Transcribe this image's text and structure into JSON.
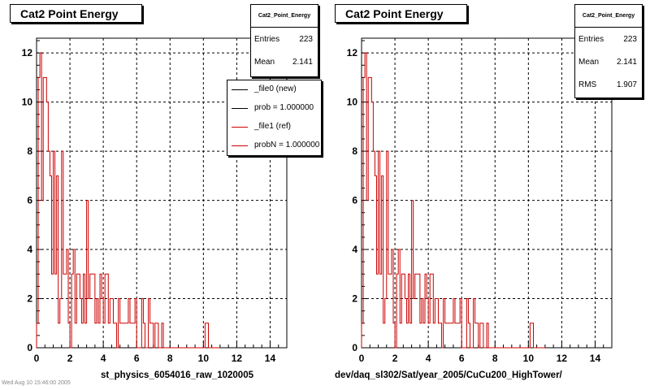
{
  "colors": {
    "ref": "#cc0000",
    "new": "#000000",
    "grid": "#000000"
  },
  "left_pad": {
    "title": "Cat2 Point Energy",
    "xlabel": "st_physics_6054016_raw_1020005",
    "stats": {
      "name": "Cat2_Point_Energy",
      "entries_label": "Entries",
      "entries": "223",
      "mean_label": "Mean",
      "mean": "2.141"
    },
    "legend": [
      {
        "label": "_file0 (new)",
        "color": "#000000"
      },
      {
        "label": "prob = 1.000000",
        "color": "#000000"
      },
      {
        "label": "_file1 (ref)",
        "color": "#cc0000"
      },
      {
        "label": "probN = 1.000000",
        "color": "#cc0000"
      }
    ]
  },
  "right_pad": {
    "title": "Cat2 Point Energy",
    "xlabel": "dev/daq_sl302/Sat/year_2005/CuCu200_HighTower/",
    "stats": {
      "name": "Cat2_Point_Energy",
      "entries_label": "Entries",
      "entries": "223",
      "mean_label": "Mean",
      "mean": "2.141",
      "rms_label": "RMS",
      "rms": "1.907"
    }
  },
  "stamp": "Wed Aug 10 15:46:00 2005",
  "chart_data": [
    {
      "type": "histogram",
      "title": "Cat2 Point Energy",
      "xlabel": "st_physics_6054016_raw_1020005",
      "xlim": [
        0,
        15
      ],
      "ylim": [
        0,
        12.6
      ],
      "xticks": [
        0,
        2,
        4,
        6,
        8,
        10,
        12,
        14
      ],
      "yticks": [
        0,
        2,
        4,
        6,
        8,
        10,
        12
      ],
      "grid": true,
      "legend_position": "top-right",
      "bin_width": 0.1,
      "bin_start": 0,
      "series": [
        {
          "name": "_file1 (ref)",
          "values": [
            1,
            11,
            12,
            6,
            11,
            11,
            10,
            8,
            7,
            3,
            8,
            3,
            7,
            1,
            2,
            8,
            3,
            3,
            4,
            1,
            0,
            3,
            4,
            1,
            3,
            3,
            2,
            1,
            3,
            1,
            6,
            2,
            3,
            3,
            3,
            1,
            2,
            1,
            3,
            2,
            1,
            3,
            3,
            1,
            2,
            2,
            1,
            1,
            0,
            2,
            1,
            1,
            1,
            1,
            1,
            2,
            1,
            1,
            1,
            2,
            0,
            0,
            0,
            2,
            1,
            0,
            0,
            2,
            1,
            1,
            0,
            1,
            1,
            0,
            0,
            1,
            0,
            0,
            0,
            0,
            0,
            0,
            0,
            0,
            0,
            0,
            0,
            0,
            0,
            0,
            0,
            0,
            0,
            0,
            0,
            0,
            0,
            0,
            0,
            0,
            0,
            1,
            1,
            0,
            0,
            0,
            0,
            0,
            0,
            0
          ]
        }
      ]
    },
    {
      "type": "histogram",
      "title": "Cat2 Point Energy",
      "xlabel": "dev/daq_sl302/Sat/year_2005/CuCu200_HighTower/",
      "xlim": [
        0,
        15
      ],
      "ylim": [
        0,
        12.6
      ],
      "xticks": [
        0,
        2,
        4,
        6,
        8,
        10,
        12,
        14
      ],
      "yticks": [
        0,
        2,
        4,
        6,
        8,
        10,
        12
      ],
      "grid": true,
      "bin_width": 0.1,
      "bin_start": 0,
      "series": [
        {
          "name": "Cat2_Point_Energy",
          "values": [
            1,
            11,
            12,
            6,
            11,
            11,
            10,
            8,
            7,
            3,
            8,
            3,
            7,
            1,
            2,
            8,
            3,
            3,
            4,
            1,
            0,
            3,
            4,
            1,
            3,
            3,
            2,
            1,
            3,
            1,
            6,
            2,
            3,
            3,
            3,
            1,
            2,
            1,
            3,
            2,
            1,
            3,
            3,
            1,
            2,
            2,
            1,
            1,
            0,
            2,
            1,
            1,
            1,
            1,
            1,
            2,
            1,
            1,
            1,
            2,
            0,
            0,
            0,
            2,
            1,
            0,
            0,
            2,
            1,
            1,
            0,
            1,
            1,
            0,
            0,
            1,
            0,
            0,
            0,
            0,
            0,
            0,
            0,
            0,
            0,
            0,
            0,
            0,
            0,
            0,
            0,
            0,
            0,
            0,
            0,
            0,
            0,
            0,
            0,
            0,
            0,
            1,
            1,
            0,
            0,
            0,
            0,
            0,
            0,
            0
          ]
        }
      ]
    }
  ]
}
